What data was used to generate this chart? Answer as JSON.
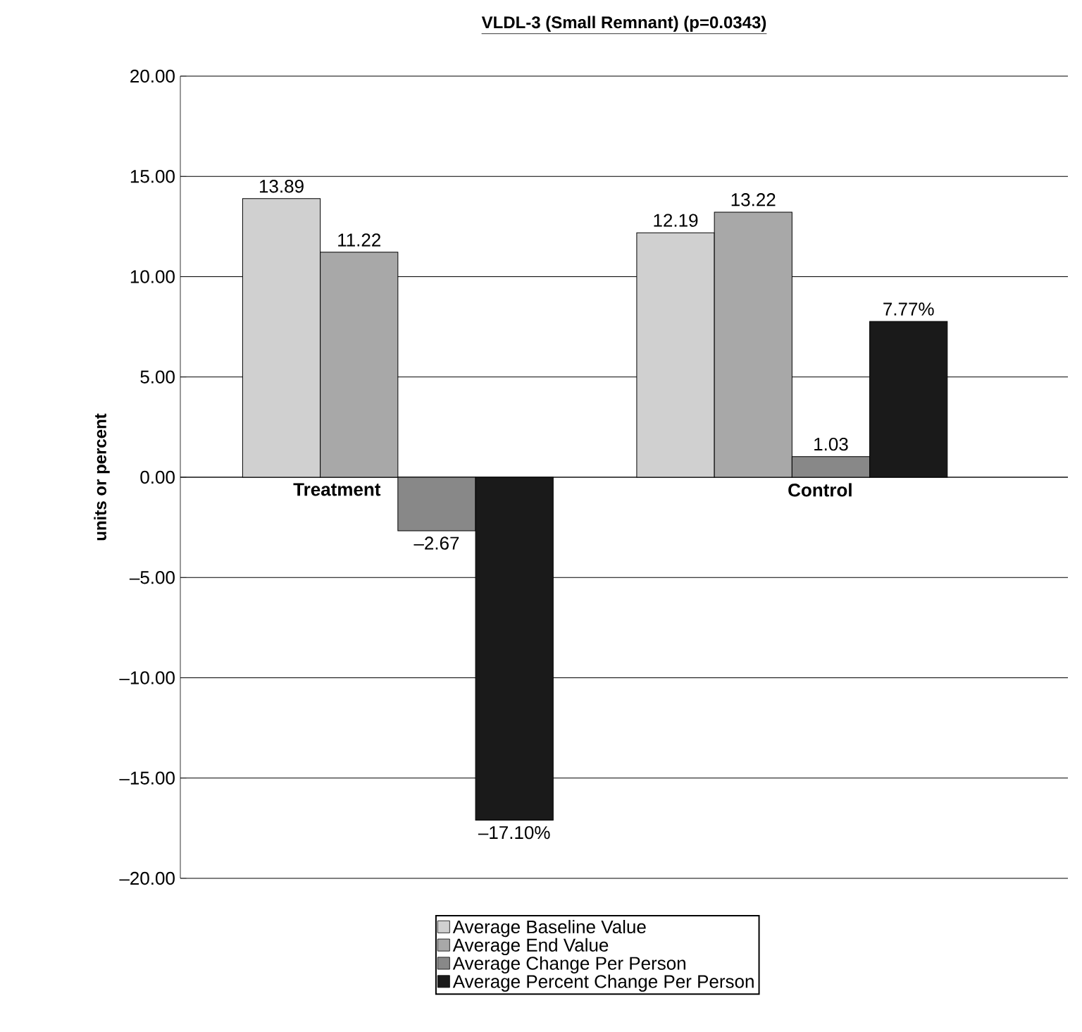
{
  "chart_data": {
    "type": "bar",
    "title": "VLDL-3 (Small Remnant) (p=0.0343)",
    "ylabel": "units or percent",
    "categories": [
      "Treatment",
      "Control"
    ],
    "series": [
      {
        "name": "Average Baseline Value",
        "color": "#d0d0d0",
        "values": [
          13.89,
          12.19
        ],
        "value_labels": [
          "13.89",
          "12.19"
        ]
      },
      {
        "name": "Average End Value",
        "color": "#a8a8a8",
        "values": [
          11.22,
          13.22
        ],
        "value_labels": [
          "11.22",
          "13.22"
        ]
      },
      {
        "name": "Average Change Per Person",
        "color": "#888888",
        "values": [
          -2.67,
          1.03
        ],
        "value_labels": [
          "–2.67",
          "1.03"
        ]
      },
      {
        "name": "Average Percent Change Per Person",
        "color": "#1a1a1a",
        "values": [
          -17.1,
          7.77
        ],
        "value_labels": [
          "–17.10%",
          "7.77%"
        ]
      }
    ],
    "ylim": [
      -20,
      20
    ],
    "yticks": [
      {
        "value": -20,
        "label": "–20.00"
      },
      {
        "value": -15,
        "label": "–15.00"
      },
      {
        "value": -10,
        "label": "–10.00"
      },
      {
        "value": -5,
        "label": "–5.00"
      },
      {
        "value": 0,
        "label": "0.00"
      },
      {
        "value": 5,
        "label": "5.00"
      },
      {
        "value": 10,
        "label": "10.00"
      },
      {
        "value": 15,
        "label": "15.00"
      },
      {
        "value": 20,
        "label": "20.00"
      }
    ],
    "grid": "y",
    "legend": "bottom"
  }
}
